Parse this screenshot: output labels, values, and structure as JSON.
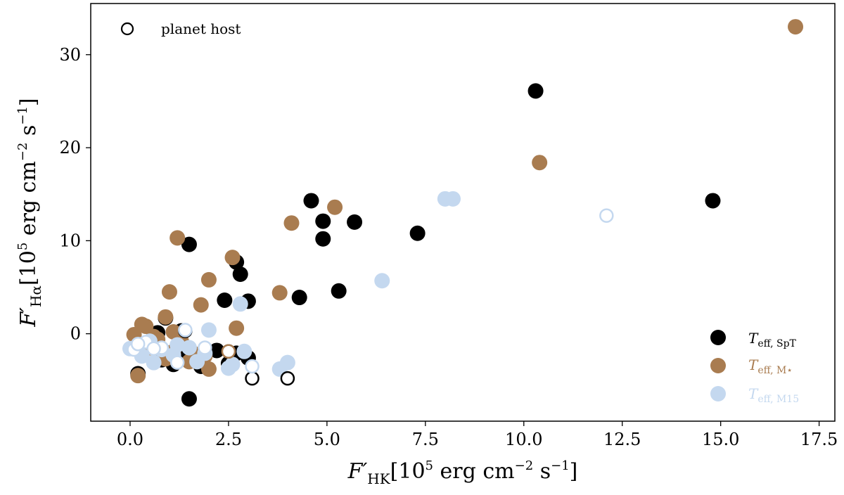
{
  "chart_data": {
    "type": "scatter",
    "title": "",
    "xlabel": "F′HK [10^5 erg cm^-2 s^-1]",
    "ylabel": "F′Hα [10^5 erg cm^-2 s^-1]",
    "xlim": [
      -1.0,
      17.9
    ],
    "ylim": [
      -9.4,
      35.5
    ],
    "grid": false,
    "x_ticks": [
      "0.0",
      "2.5",
      "5.0",
      "7.5",
      "10.0",
      "12.5",
      "15.0",
      "17.5"
    ],
    "x_tick_values": [
      0,
      2.5,
      5,
      7.5,
      10,
      12.5,
      15,
      17.5
    ],
    "y_ticks": [
      "0",
      "10",
      "20",
      "30"
    ],
    "y_tick_values": [
      0,
      10,
      20,
      30
    ],
    "axis_labels": {
      "x_main": "F′",
      "x_sub": "HK",
      "x_units": "[10",
      "x_exp": "5",
      "x_rest": " erg cm",
      "x_exp2": "−2",
      "x_rest2": " s",
      "x_exp3": "−1",
      "x_close": "]",
      "y_main": "F′",
      "y_sub": "Hα",
      "y_units": "[10",
      "y_exp": "5",
      "y_rest": " erg cm",
      "y_exp2": "−2",
      "y_rest2": " s",
      "y_exp3": "−1",
      "y_close": "]"
    },
    "legend_top_left": {
      "label": "planet host"
    },
    "legend_bottom_right": [
      {
        "main": "T",
        "sub": "eff, SpT",
        "color": "#000000"
      },
      {
        "main": "T",
        "sub": "eff, M⋆",
        "color": "#a97c50"
      },
      {
        "main": "T",
        "sub": "eff, M15",
        "color": "#c4d8ef"
      }
    ],
    "series": [
      {
        "name": "Teff, SpT",
        "color": "#000000",
        "points": [
          [
            10.3,
            26.1
          ],
          [
            14.8,
            14.3
          ],
          [
            4.6,
            14.3
          ],
          [
            4.9,
            12.1
          ],
          [
            5.7,
            12.0
          ],
          [
            7.3,
            10.8
          ],
          [
            4.9,
            10.2
          ],
          [
            1.5,
            9.6
          ],
          [
            2.7,
            7.7
          ],
          [
            2.8,
            6.4
          ],
          [
            5.3,
            4.6
          ],
          [
            4.3,
            3.9
          ],
          [
            2.4,
            3.6
          ],
          [
            3.0,
            3.5
          ],
          [
            0.9,
            1.7
          ],
          [
            1.5,
            -7.0
          ],
          [
            0.2,
            -4.3
          ],
          [
            0.7,
            0.1
          ],
          [
            1.3,
            0.3
          ],
          [
            1.1,
            -3.3
          ],
          [
            2.2,
            -1.8
          ],
          [
            2.7,
            -2.1
          ],
          [
            3.0,
            -2.6
          ],
          [
            1.5,
            -1.6
          ],
          [
            0.8,
            -2.8
          ],
          [
            1.8,
            -3.5
          ],
          [
            0.3,
            -2.2
          ],
          [
            2.5,
            -3.2
          ],
          [
            0.6,
            -1.2
          ],
          [
            1.2,
            -2.5
          ]
        ],
        "hollow_points": [
          [
            3.1,
            -4.8
          ],
          [
            4.0,
            -4.8
          ],
          [
            2.5,
            -1.9
          ],
          [
            1.4,
            0.3
          ]
        ]
      },
      {
        "name": "Teff, M⋆",
        "color": "#a97c50",
        "points": [
          [
            16.9,
            33.0
          ],
          [
            10.4,
            18.4
          ],
          [
            5.2,
            13.6
          ],
          [
            4.1,
            11.9
          ],
          [
            1.2,
            10.3
          ],
          [
            2.6,
            8.2
          ],
          [
            2.0,
            5.8
          ],
          [
            1.0,
            4.5
          ],
          [
            3.8,
            4.4
          ],
          [
            1.8,
            3.1
          ],
          [
            2.7,
            0.6
          ],
          [
            0.9,
            1.8
          ],
          [
            0.1,
            -0.1
          ],
          [
            0.4,
            0.8
          ],
          [
            0.2,
            -4.5
          ],
          [
            0.3,
            1.0
          ],
          [
            0.6,
            -0.3
          ],
          [
            1.1,
            0.2
          ],
          [
            0.5,
            -1.5
          ],
          [
            0.9,
            -2.7
          ],
          [
            1.3,
            -0.8
          ],
          [
            2.0,
            -3.8
          ],
          [
            0.2,
            -1.0
          ],
          [
            1.6,
            -2.1
          ],
          [
            0.7,
            -0.6
          ],
          [
            1.5,
            -3.0
          ],
          [
            1.9,
            -2.4
          ],
          [
            1.1,
            -1.9
          ]
        ],
        "hollow_points": [
          [
            2.5,
            -1.9
          ]
        ]
      },
      {
        "name": "Teff, M15",
        "color": "#c4d8ef",
        "points": [
          [
            8.0,
            14.5
          ],
          [
            8.2,
            14.5
          ],
          [
            6.4,
            5.7
          ],
          [
            2.8,
            3.2
          ],
          [
            3.8,
            -3.8
          ],
          [
            4.0,
            -3.1
          ],
          [
            2.9,
            -1.9
          ],
          [
            2.6,
            -3.3
          ],
          [
            1.5,
            -1.5
          ],
          [
            2.0,
            0.4
          ],
          [
            1.1,
            -2.3
          ],
          [
            0.5,
            -0.8
          ],
          [
            0.0,
            -1.6
          ],
          [
            1.7,
            -3.0
          ],
          [
            1.9,
            -2.1
          ],
          [
            0.8,
            -1.7
          ],
          [
            2.5,
            -3.7
          ],
          [
            0.3,
            -2.4
          ],
          [
            1.2,
            -1.2
          ],
          [
            0.6,
            -3.1
          ]
        ],
        "hollow_points": [
          [
            12.1,
            12.7
          ],
          [
            3.1,
            -3.5
          ],
          [
            1.4,
            0.4
          ],
          [
            0.1,
            -1.7
          ],
          [
            0.4,
            -0.9
          ],
          [
            0.8,
            -1.5
          ],
          [
            1.9,
            -1.5
          ],
          [
            0.2,
            -1.1
          ],
          [
            1.2,
            -3.1
          ],
          [
            0.6,
            -1.6
          ]
        ]
      }
    ]
  }
}
